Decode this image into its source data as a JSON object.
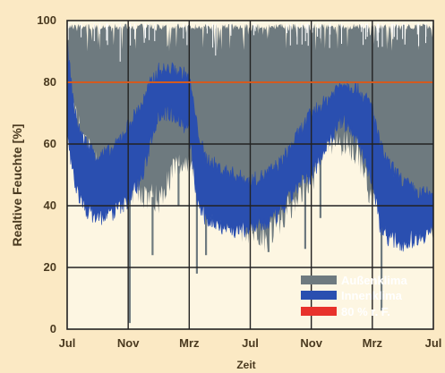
{
  "chart_data": {
    "type": "line",
    "ylabel": "Realtive Feuchte [%]",
    "xlabel": "Zeit",
    "ylim": [
      0,
      100
    ],
    "yticks": [
      0,
      20,
      40,
      60,
      80,
      100
    ],
    "x_ticks": [
      "Jul",
      "Nov",
      "Mrz",
      "Jul",
      "Nov",
      "Mrz",
      "Jul"
    ],
    "x_tick_positions": [
      0,
      4,
      8,
      12,
      16,
      20,
      24
    ],
    "xlim": [
      0,
      24
    ],
    "grid": true,
    "legend_position": "bottom-right",
    "series": [
      {
        "name": "Außenklima",
        "color": "#6e7a7f",
        "x": [
          0,
          1,
          2,
          3,
          4,
          5,
          6,
          7,
          8,
          9,
          10,
          11,
          12,
          13,
          14,
          15,
          16,
          17,
          18,
          19,
          20,
          21,
          22,
          23,
          24
        ],
        "low": [
          76,
          62,
          52,
          48,
          45,
          44,
          42,
          52,
          55,
          48,
          40,
          34,
          32,
          30,
          36,
          42,
          48,
          62,
          60,
          58,
          42,
          50,
          40,
          36,
          34
        ],
        "high": [
          99,
          99,
          99,
          99,
          99,
          99,
          99,
          99,
          99,
          99,
          99,
          99,
          99,
          99,
          99,
          99,
          99,
          99,
          99,
          99,
          99,
          99,
          99,
          99,
          99
        ],
        "spikes": [
          {
            "x": 4.1,
            "y": 2
          },
          {
            "x": 5.6,
            "y": 24
          },
          {
            "x": 7.3,
            "y": 40
          },
          {
            "x": 8.5,
            "y": 18
          },
          {
            "x": 9.1,
            "y": 24
          },
          {
            "x": 13.2,
            "y": 25
          },
          {
            "x": 15.6,
            "y": 26
          },
          {
            "x": 16.6,
            "y": 36
          },
          {
            "x": 20.6,
            "y": 6
          },
          {
            "x": 23.5,
            "y": 33
          }
        ]
      },
      {
        "name": "Innenklima",
        "color": "#2a4fb0",
        "x": [
          0,
          0.5,
          1,
          2,
          3,
          4,
          5,
          5.5,
          6,
          7,
          8,
          8.5,
          9,
          10,
          11,
          12,
          13,
          14,
          15,
          16,
          17,
          18,
          19,
          20,
          20.5,
          21,
          22,
          23,
          24
        ],
        "low": [
          62,
          48,
          40,
          36,
          38,
          42,
          50,
          62,
          70,
          70,
          64,
          42,
          36,
          34,
          32,
          33,
          34,
          38,
          46,
          50,
          60,
          68,
          62,
          48,
          34,
          30,
          28,
          30,
          32
        ],
        "high": [
          92,
          70,
          62,
          56,
          58,
          66,
          74,
          80,
          84,
          84,
          82,
          66,
          56,
          52,
          50,
          48,
          50,
          54,
          62,
          70,
          74,
          80,
          78,
          72,
          60,
          54,
          48,
          44,
          44
        ]
      },
      {
        "name": "80 % r. F.",
        "color": "#d45a1f",
        "x": [
          0,
          24
        ],
        "y": [
          80,
          80
        ]
      }
    ],
    "legend_swatch_colors": [
      "#6e7a7f",
      "#2a4fb0",
      "#e8322b"
    ]
  }
}
